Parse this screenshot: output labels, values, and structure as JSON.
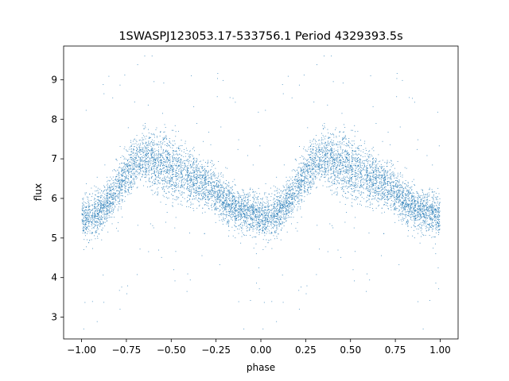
{
  "chart_data": {
    "type": "scatter",
    "title": "1SWASPJ123053.17-533756.1 Period 4329393.5s",
    "xlabel": "phase",
    "ylabel": "flux",
    "xlim": [
      -1.1,
      1.1
    ],
    "ylim": [
      2.45,
      9.85
    ],
    "xticks": [
      -1.0,
      -0.75,
      -0.5,
      -0.25,
      0.0,
      0.25,
      0.5,
      0.75,
      1.0
    ],
    "xtick_labels": [
      "−1.00",
      "−0.75",
      "−0.50",
      "−0.25",
      "0.00",
      "0.25",
      "0.50",
      "0.75",
      "1.00"
    ],
    "yticks": [
      3,
      4,
      5,
      6,
      7,
      8,
      9
    ],
    "ytick_labels": [
      "3",
      "4",
      "5",
      "6",
      "7",
      "8",
      "9"
    ],
    "grid": false,
    "legend": "none",
    "marker_color": "#1f77b4",
    "x_range": [
      -1.0,
      1.0
    ],
    "phase_folded": true,
    "series": [
      {
        "phase": [
          0.0,
          0.05,
          0.1,
          0.15,
          0.2,
          0.25,
          0.3,
          0.35,
          0.4,
          0.45,
          0.5,
          0.55,
          0.6,
          0.65,
          0.7,
          0.75,
          0.8,
          0.85,
          0.9,
          0.95,
          1.0
        ],
        "flux_center": [
          5.55,
          5.55,
          5.65,
          5.9,
          6.25,
          6.6,
          6.9,
          7.0,
          6.95,
          6.85,
          6.75,
          6.65,
          6.55,
          6.45,
          6.35,
          6.15,
          5.95,
          5.8,
          5.7,
          5.6,
          5.55
        ],
        "flux_spread": [
          0.5,
          0.5,
          0.5,
          0.5,
          0.5,
          0.55,
          0.55,
          0.6,
          0.65,
          0.7,
          0.75,
          0.7,
          0.65,
          0.6,
          0.55,
          0.55,
          0.55,
          0.5,
          0.5,
          0.5,
          0.5
        ]
      }
    ]
  }
}
